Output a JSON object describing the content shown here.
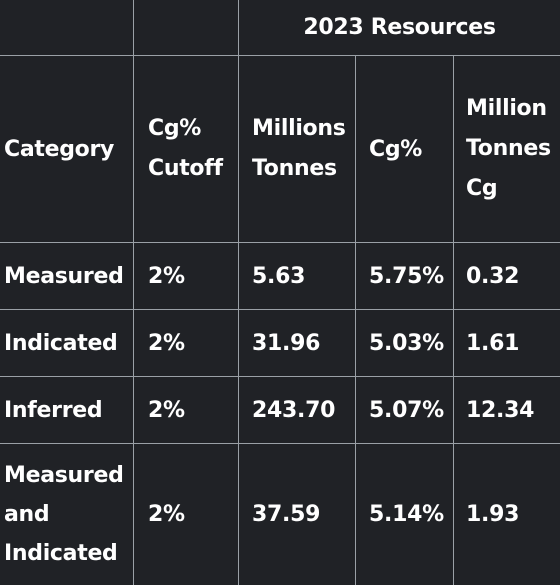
{
  "table": {
    "group_header": "2023 Resources",
    "headers": {
      "category": "Category",
      "cutoff": [
        "Cg%",
        "Cutoff"
      ],
      "tonnes": [
        "Millions",
        "Tonnes"
      ],
      "grade": "Cg%",
      "contained": [
        "Million",
        "Tonnes",
        "Cg"
      ]
    },
    "rows": [
      {
        "category": [
          "Measured"
        ],
        "cutoff": "2%",
        "tonnes": "5.63",
        "grade": "5.75%",
        "contained": "0.32"
      },
      {
        "category": [
          "Indicated"
        ],
        "cutoff": "2%",
        "tonnes": "31.96",
        "grade": "5.03%",
        "contained": "1.61"
      },
      {
        "category": [
          "Inferred"
        ],
        "cutoff": "2%",
        "tonnes": "243.70",
        "grade": "5.07%",
        "contained": "12.34"
      },
      {
        "category": [
          "Measured",
          "and",
          "Indicated"
        ],
        "cutoff": "2%",
        "tonnes": "37.59",
        "grade": "5.14%",
        "contained": "1.93"
      }
    ]
  }
}
